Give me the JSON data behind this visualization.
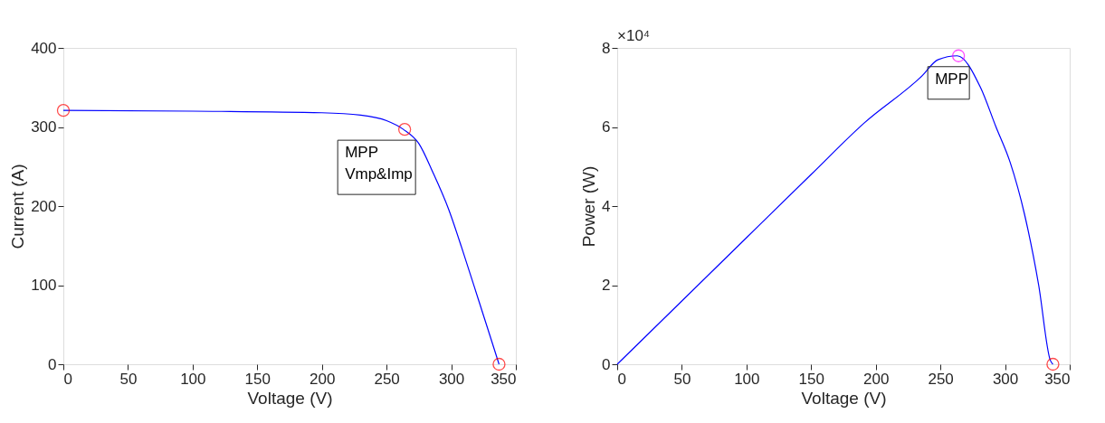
{
  "chart_data": [
    {
      "type": "line",
      "xlabel": "Voltage (V)",
      "ylabel": "Current (A)",
      "xlim": [
        0,
        350
      ],
      "ylim": [
        0,
        400
      ],
      "xticks": [
        0,
        50,
        100,
        150,
        200,
        250,
        300,
        350
      ],
      "yticks": [
        0,
        100,
        200,
        300,
        400
      ],
      "grid": false,
      "series": [
        {
          "color": "#0000ff",
          "marker": "none",
          "x": [
            0,
            100,
            200,
            230,
            250,
            263,
            275,
            286,
            298,
            309,
            321,
            330,
            337
          ],
          "values": [
            321,
            320,
            318,
            315,
            308,
            297,
            279,
            242,
            196,
            143,
            82,
            36,
            0
          ]
        },
        {
          "type": "scatter",
          "marker": "circle",
          "colors": [
            "#ff0000",
            "#ff0000",
            "#ff0000"
          ],
          "x": [
            0,
            264,
            337
          ],
          "values": [
            321,
            297,
            0
          ]
        }
      ],
      "annotations": [
        {
          "text": "MPP\nVmp&Imp",
          "x": 264,
          "y": 297
        }
      ]
    },
    {
      "type": "line",
      "xlabel": "Voltage (V)",
      "ylabel": "Power (W)",
      "xlim": [
        0,
        350
      ],
      "ylim": [
        0,
        8
      ],
      "xticks": [
        0,
        50,
        100,
        150,
        200,
        250,
        300,
        350
      ],
      "yticks": [
        0,
        2,
        4,
        6,
        8
      ],
      "grid": false,
      "series": [
        {
          "color": "#0000ff",
          "marker": "none",
          "x": [
            0,
            50,
            100,
            150,
            191,
            236,
            248,
            263,
            281,
            293,
            304,
            315,
            326,
            335,
            337
          ],
          "values": [
            0,
            1.6,
            3.2,
            4.8,
            6.1,
            7.3,
            7.7,
            7.8,
            7.0,
            6.0,
            5.1,
            3.8,
            2.0,
            0.1,
            0
          ]
        },
        {
          "type": "scatter",
          "marker": "circle",
          "colors": [
            "#ff00ff",
            "#ff0000"
          ],
          "x": [
            264,
            337
          ],
          "values": [
            7.8,
            0
          ]
        }
      ],
      "annotations": [
        {
          "text": "MPP",
          "x": 264,
          "y": 7.8
        },
        "×10⁴"
      ]
    }
  ]
}
